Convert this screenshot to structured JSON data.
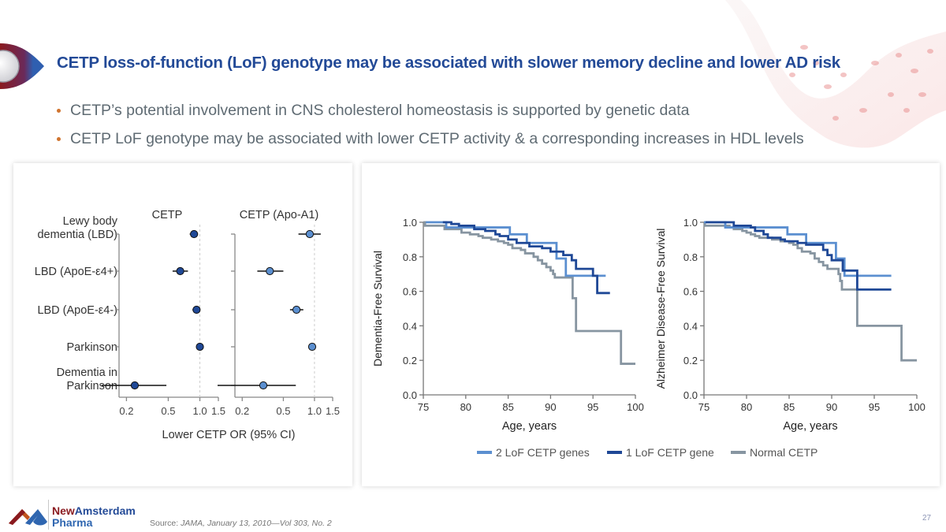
{
  "slide": {
    "title": "CETP loss-of-function (LoF) genotype may be associated with slower memory decline and lower AD risk",
    "bullets": [
      "CETP’s potential involvement in CNS cholesterol homeostasis is supported by genetic data",
      "CETP LoF genotype may be associated with lower CETP activity & a corresponding increases in HDL levels"
    ],
    "page_number": "27",
    "source_prefix": "Source: ",
    "source_journal": "JAMA, January 13, 2010—Vol 303, No. 2",
    "logo_line1_a": "New",
    "logo_line1_b": "Amsterdam",
    "logo_line2": "Pharma"
  },
  "colors": {
    "title": "#234a97",
    "bullet": "#d0742f",
    "dark_blue": "#1f4896",
    "light_blue": "#5b8fd0",
    "gray": "#8795a1"
  },
  "chart_data": [
    {
      "type": "scatter",
      "subtype": "forest-plot",
      "xlabel": "Lower CETP OR (95% CI)",
      "xscale": "log",
      "xticks": [
        0.2,
        0.5,
        1.0,
        1.5
      ],
      "xtick_labels": [
        "0.2",
        "0.5",
        "1.0",
        "1.5"
      ],
      "xlim": [
        0.17,
        1.5
      ],
      "reference_line": 1.0,
      "categories": [
        "Lewy body dementia (LBD)",
        "LBD (ApoE-ε4+)",
        "LBD (ApoE-ε4-)",
        "Parkinson",
        "Dementia in Parkinson"
      ],
      "category_lines": [
        [
          "Lewy body",
          "dementia (LBD)"
        ],
        [
          "LBD (ApoE-ε4+)"
        ],
        [
          "LBD (ApoE-ε4-)"
        ],
        [
          "Parkinson"
        ],
        [
          "Dementia in",
          "Parkinson"
        ]
      ],
      "panels": [
        {
          "name": "CETP",
          "color": "#1f4896",
          "or": [
            0.88,
            0.65,
            0.93,
            1.0,
            0.24
          ],
          "ci_low": [
            0.8,
            0.55,
            0.85,
            0.98,
            0.17
          ],
          "ci_high": [
            0.96,
            0.77,
            1.01,
            1.02,
            0.48
          ]
        },
        {
          "name": "CETP (Apo-A1)",
          "color": "#5b8fd0",
          "or": [
            0.9,
            0.37,
            0.67,
            0.95,
            0.32
          ],
          "ci_low": [
            0.7,
            0.28,
            0.58,
            0.9,
            0.17
          ],
          "ci_high": [
            1.15,
            0.5,
            0.78,
            1.03,
            0.66
          ]
        }
      ]
    },
    {
      "type": "line",
      "subtype": "kaplan-meier",
      "xlabel": "Age, years",
      "ylabel": "Dementia-Free Survival",
      "xlim": [
        75,
        100
      ],
      "ylim": [
        0.0,
        1.0
      ],
      "xticks": [
        75,
        80,
        85,
        90,
        95,
        100
      ],
      "yticks": [
        "0.0",
        "0.2",
        "0.4",
        "0.6",
        "0.8",
        "1.0"
      ],
      "series": [
        {
          "name": "Normal CETP",
          "color": "#8795a1",
          "steps": [
            [
              75,
              1.0
            ],
            [
              75.2,
              0.98
            ],
            [
              77.5,
              0.96
            ],
            [
              79.5,
              0.94
            ],
            [
              80.5,
              0.93
            ],
            [
              81.5,
              0.92
            ],
            [
              82,
              0.91
            ],
            [
              83,
              0.9
            ],
            [
              83.8,
              0.89
            ],
            [
              84.5,
              0.88
            ],
            [
              85,
              0.87
            ],
            [
              85.5,
              0.85
            ],
            [
              86.5,
              0.84
            ],
            [
              87,
              0.82
            ],
            [
              88,
              0.8
            ],
            [
              88.5,
              0.78
            ],
            [
              89,
              0.76
            ],
            [
              89.5,
              0.74
            ],
            [
              90,
              0.72
            ],
            [
              90.3,
              0.7
            ],
            [
              90.5,
              0.68
            ],
            [
              91,
              0.68
            ],
            [
              92.5,
              0.68
            ],
            [
              92.6,
              0.56
            ],
            [
              93,
              0.56
            ],
            [
              93,
              0.37
            ],
            [
              98.3,
              0.37
            ],
            [
              98.3,
              0.18
            ],
            [
              100,
              0.18
            ]
          ]
        },
        {
          "name": "1 LoF CETP gene",
          "color": "#1f4896",
          "steps": [
            [
              77.3,
              1.0
            ],
            [
              78.3,
              0.99
            ],
            [
              79.2,
              0.98
            ],
            [
              81,
              0.96
            ],
            [
              82.3,
              0.95
            ],
            [
              83.5,
              0.93
            ],
            [
              84,
              0.92
            ],
            [
              85,
              0.9
            ],
            [
              86,
              0.88
            ],
            [
              87.5,
              0.86
            ],
            [
              89,
              0.85
            ],
            [
              90,
              0.83
            ],
            [
              91.5,
              0.81
            ],
            [
              92.5,
              0.78
            ],
            [
              93,
              0.73
            ],
            [
              95,
              0.69
            ],
            [
              95.5,
              0.69
            ],
            [
              95.5,
              0.59
            ],
            [
              97,
              0.59
            ]
          ]
        },
        {
          "name": "2 LoF CETP genes",
          "color": "#5b8fd0",
          "steps": [
            [
              75.3,
              1.0
            ],
            [
              77.7,
              1.0
            ],
            [
              77.7,
              0.97
            ],
            [
              85.2,
              0.97
            ],
            [
              85.2,
              0.93
            ],
            [
              87.2,
              0.93
            ],
            [
              87.2,
              0.88
            ],
            [
              90.7,
              0.88
            ],
            [
              90.7,
              0.79
            ],
            [
              91.8,
              0.79
            ],
            [
              91.8,
              0.69
            ],
            [
              96.5,
              0.69
            ]
          ]
        }
      ]
    },
    {
      "type": "line",
      "subtype": "kaplan-meier",
      "xlabel": "Age, years",
      "ylabel": "Alzheimer Disease-Free Survival",
      "xlim": [
        75,
        100
      ],
      "ylim": [
        0.0,
        1.0
      ],
      "xticks": [
        75,
        80,
        85,
        90,
        95,
        100
      ],
      "yticks": [
        "0.0",
        "0.2",
        "0.4",
        "0.6",
        "0.8",
        "1.0"
      ],
      "series": [
        {
          "name": "Normal CETP",
          "color": "#8795a1",
          "steps": [
            [
              75,
              1.0
            ],
            [
              75.1,
              0.98
            ],
            [
              78,
              0.97
            ],
            [
              78.5,
              0.96
            ],
            [
              79.5,
              0.95
            ],
            [
              80,
              0.94
            ],
            [
              80.5,
              0.93
            ],
            [
              81,
              0.92
            ],
            [
              81.5,
              0.91
            ],
            [
              83,
              0.9
            ],
            [
              84,
              0.89
            ],
            [
              85,
              0.88
            ],
            [
              85.5,
              0.87
            ],
            [
              86,
              0.85
            ],
            [
              86.5,
              0.83
            ],
            [
              87.5,
              0.82
            ],
            [
              88,
              0.79
            ],
            [
              88.5,
              0.77
            ],
            [
              89,
              0.75
            ],
            [
              89.5,
              0.73
            ],
            [
              90.5,
              0.73
            ],
            [
              90.8,
              0.7
            ],
            [
              91,
              0.66
            ],
            [
              91.2,
              0.61
            ],
            [
              93,
              0.61
            ],
            [
              93,
              0.4
            ],
            [
              98.2,
              0.4
            ],
            [
              98.2,
              0.2
            ],
            [
              100,
              0.2
            ]
          ]
        },
        {
          "name": "1 LoF CETP gene",
          "color": "#1f4896",
          "steps": [
            [
              75.2,
              1.0
            ],
            [
              78.5,
              1.0
            ],
            [
              78.5,
              0.98
            ],
            [
              80.5,
              0.97
            ],
            [
              81,
              0.95
            ],
            [
              82,
              0.93
            ],
            [
              82.5,
              0.91
            ],
            [
              84,
              0.9
            ],
            [
              84.5,
              0.89
            ],
            [
              86,
              0.88
            ],
            [
              87,
              0.87
            ],
            [
              89,
              0.87
            ],
            [
              89,
              0.84
            ],
            [
              89.5,
              0.81
            ],
            [
              90,
              0.78
            ],
            [
              91,
              0.78
            ],
            [
              91.3,
              0.72
            ],
            [
              93,
              0.72
            ],
            [
              93,
              0.61
            ],
            [
              97,
              0.61
            ]
          ]
        },
        {
          "name": "2 LoF CETP genes",
          "color": "#5b8fd0",
          "steps": [
            [
              75,
              1.0
            ],
            [
              77.5,
              1.0
            ],
            [
              77.5,
              0.97
            ],
            [
              84.8,
              0.97
            ],
            [
              84.8,
              0.93
            ],
            [
              87,
              0.93
            ],
            [
              87,
              0.88
            ],
            [
              90.5,
              0.88
            ],
            [
              90.5,
              0.79
            ],
            [
              91.5,
              0.79
            ],
            [
              91.5,
              0.69
            ],
            [
              97,
              0.69
            ]
          ]
        }
      ]
    }
  ],
  "legend": [
    {
      "label": "2 LoF CETP genes",
      "color": "#5b8fd0"
    },
    {
      "label": "1 LoF CETP gene",
      "color": "#1f4896"
    },
    {
      "label": "Normal CETP",
      "color": "#8795a1"
    }
  ]
}
